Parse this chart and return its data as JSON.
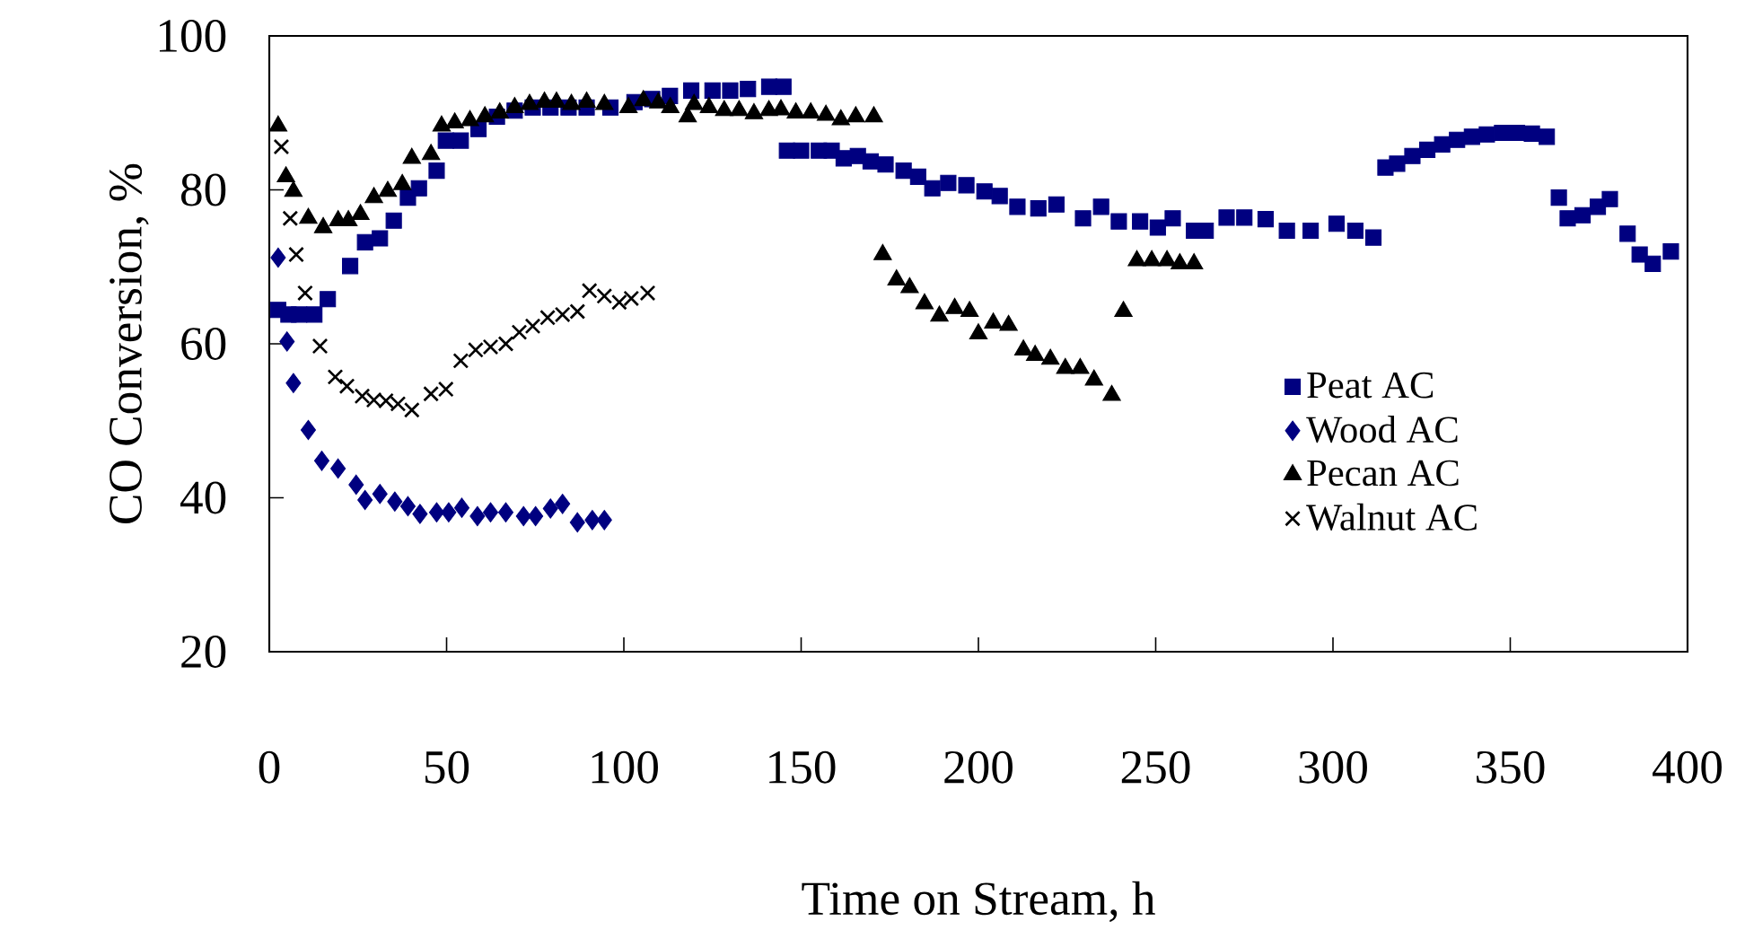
{
  "chart_data": {
    "type": "scatter",
    "xlabel": "Time on Stream, h",
    "ylabel": "CO Conversion, %",
    "xlim": [
      0,
      400
    ],
    "ylim": [
      20,
      100
    ],
    "xticks": [
      0,
      50,
      100,
      150,
      200,
      250,
      300,
      350,
      400
    ],
    "yticks": [
      20,
      40,
      60,
      80,
      100
    ],
    "grid": false,
    "legend": "right",
    "series": [
      {
        "name": "Peat AC",
        "color": "#000080",
        "marker": "square",
        "x": [
          2.5,
          5.4,
          8.4,
          12.7,
          16.5,
          22.8,
          27,
          31.2,
          35.1,
          39.1,
          42.2,
          47.2,
          49.8,
          54,
          59,
          64.2,
          69.2,
          74.3,
          79.3,
          84.4,
          89.5,
          96.2,
          103,
          108,
          113,
          119,
          125,
          130,
          135,
          141,
          145,
          146,
          150,
          155,
          158.6,
          162,
          166,
          169.6,
          173.8,
          178.9,
          183,
          187,
          191.5,
          196.6,
          201.7,
          206,
          211,
          216.9,
          222,
          229.5,
          234.6,
          239.6,
          245.6,
          250.6,
          254.8,
          260.8,
          264.1,
          270,
          275,
          281,
          287,
          293.7,
          301,
          306.3,
          311.4,
          314.8,
          318.1,
          322.4,
          326.6,
          330.8,
          335,
          339.2,
          343.4,
          347.7,
          351.9,
          356.1,
          360.3,
          363.7,
          366.2,
          370.4,
          374.7,
          378.1,
          383.1,
          386.5,
          390.2,
          395.3
        ],
        "values": [
          64.4,
          63.8,
          63.8,
          63.8,
          65.8,
          70.1,
          73.2,
          73.7,
          76,
          79,
          80.2,
          82.5,
          86.4,
          86.4,
          87.9,
          89.5,
          90.3,
          90.7,
          90.7,
          90.7,
          90.7,
          90.7,
          91.4,
          91.8,
          92.2,
          92.9,
          92.9,
          92.9,
          93.1,
          93.4,
          93.4,
          85.1,
          85.1,
          85.1,
          85.1,
          84.1,
          84.4,
          83.7,
          83.3,
          82.5,
          81.7,
          80.2,
          80.9,
          80.6,
          79.8,
          79.2,
          77.8,
          77.6,
          78.1,
          76.3,
          77.8,
          75.9,
          75.9,
          75.1,
          76.3,
          74.7,
          74.7,
          76.4,
          76.4,
          76.2,
          74.7,
          74.7,
          75.6,
          74.7,
          73.8,
          82.9,
          83.4,
          84.4,
          85.2,
          85.9,
          86.5,
          86.9,
          87.2,
          87.4,
          87.4,
          87.3,
          86.9,
          79,
          76.3,
          76.7,
          77.8,
          78.8,
          74.3,
          71.6,
          70.4,
          72
        ]
      },
      {
        "name": "Wood AC",
        "color": "#000080",
        "marker": "diamond",
        "x": [
          2.5,
          5,
          6.8,
          11,
          14.8,
          19.4,
          24.5,
          27,
          31.2,
          35.4,
          39.1,
          42.5,
          47.2,
          50.6,
          54.3,
          58.7,
          62.4,
          66.7,
          71.7,
          75.1,
          79.3,
          82.7,
          86.9,
          91.1,
          94.5
        ],
        "values": [
          71.2,
          60.3,
          54.9,
          48.8,
          44.8,
          43.8,
          41.7,
          39.7,
          40.5,
          39.5,
          38.9,
          37.9,
          38.1,
          38.1,
          38.7,
          37.6,
          38.1,
          38.1,
          37.6,
          37.6,
          38.6,
          39.2,
          36.8,
          37.1,
          37.1
        ]
      },
      {
        "name": "Pecan AC",
        "color": "#000000",
        "marker": "triangle",
        "x": [
          2.5,
          4.7,
          6.8,
          11,
          15.2,
          19.4,
          22.3,
          25.7,
          29.5,
          33.4,
          37.5,
          40.2,
          45.6,
          48.6,
          52.3,
          56.6,
          60.8,
          65,
          69.2,
          73.4,
          77.6,
          81,
          85.2,
          89.5,
          94.5,
          101.3,
          105.5,
          109.7,
          113.1,
          118,
          119.8,
          124,
          128.3,
          132.5,
          136.7,
          140.9,
          144.3,
          148.5,
          152.7,
          157,
          161.2,
          165.4,
          170.5,
          173,
          176.9,
          180.6,
          184.8,
          189,
          193.3,
          197.5,
          200,
          204.2,
          208.5,
          212.7,
          216,
          220.3,
          224.5,
          228.7,
          232.6,
          237.6,
          240.9,
          244.7,
          248.9,
          253.2,
          256.8,
          260.8
        ],
        "values": [
          88.3,
          81.7,
          79.8,
          76.3,
          75.1,
          76,
          76,
          76.8,
          79,
          79.8,
          80.7,
          84.1,
          84.6,
          88.3,
          88.7,
          89,
          89.5,
          90,
          90.7,
          91.1,
          91.4,
          91.4,
          91.1,
          91.4,
          91.1,
          90.7,
          91.6,
          91.3,
          90.7,
          89.5,
          91.1,
          90.7,
          90.3,
          90.3,
          89.9,
          90.3,
          90.4,
          90,
          90,
          89.7,
          89.1,
          89.5,
          89.5,
          71.6,
          68.3,
          67.3,
          65.2,
          63.6,
          64.6,
          64.2,
          61.3,
          62.7,
          62.4,
          59.2,
          58.5,
          58,
          56.8,
          56.8,
          55.3,
          53.3,
          64.2,
          70.8,
          70.8,
          70.8,
          70.4,
          70.4
        ]
      },
      {
        "name": "Walnut AC",
        "color": "#000000",
        "marker": "cross",
        "x": [
          3.4,
          5.9,
          7.6,
          10.1,
          14.3,
          18.6,
          21.9,
          26.2,
          29.5,
          32.9,
          36.3,
          40.2,
          45.6,
          49.8,
          54,
          58.2,
          62.4,
          66.7,
          70.5,
          74.3,
          78.5,
          82.7,
          86.9,
          90.3,
          94.5,
          98.7,
          102.1,
          106.7
        ],
        "values": [
          85.6,
          76.3,
          71.6,
          66.6,
          59.7,
          55.7,
          54.5,
          53.2,
          52.7,
          52.6,
          52.2,
          51.4,
          53.5,
          54.1,
          57.8,
          59.2,
          59.6,
          60,
          61.5,
          62.3,
          63.4,
          63.8,
          64.2,
          66.9,
          66.2,
          65.4,
          65.9,
          66.6
        ]
      }
    ]
  }
}
